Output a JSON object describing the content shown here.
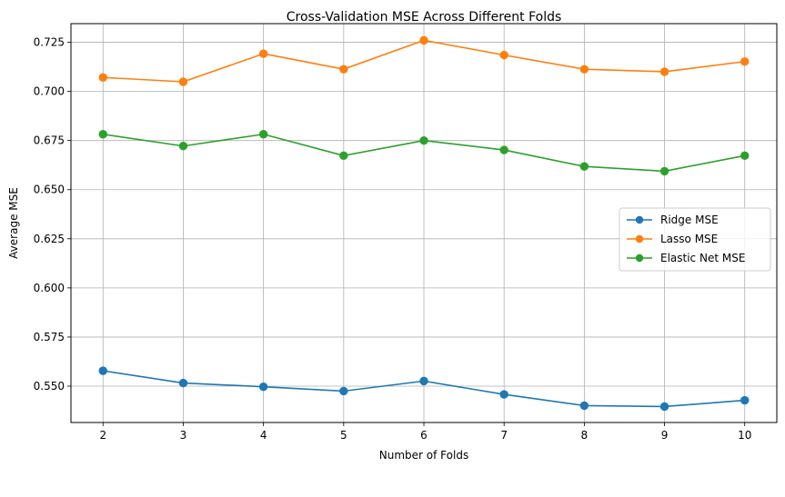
{
  "chart_data": {
    "type": "line",
    "title": "Cross-Validation MSE Across Different Folds",
    "xlabel": "Number of Folds",
    "ylabel": "Average MSE",
    "x": [
      2,
      3,
      4,
      5,
      6,
      7,
      8,
      9,
      10
    ],
    "xlim": [
      1.6,
      10.4
    ],
    "ylim": [
      0.5315,
      0.7345
    ],
    "xticks": [
      "2",
      "3",
      "4",
      "5",
      "6",
      "7",
      "8",
      "9",
      "10"
    ],
    "yticks": [
      "0.550",
      "0.575",
      "0.600",
      "0.625",
      "0.650",
      "0.675",
      "0.700",
      "0.725"
    ],
    "grid": true,
    "legend_position": "center-right",
    "series": [
      {
        "name": "Ridge MSE",
        "color": "#1f77b4",
        "marker": "circle",
        "values": [
          0.5578,
          0.5516,
          0.5497,
          0.5475,
          0.5526,
          0.5458,
          0.5401,
          0.5396,
          0.5428
        ]
      },
      {
        "name": "Lasso MSE",
        "color": "#ff7f0e",
        "marker": "circle",
        "values": [
          0.7071,
          0.7049,
          0.7192,
          0.7113,
          0.726,
          0.7185,
          0.7113,
          0.71,
          0.7152
        ]
      },
      {
        "name": "Elastic Net MSE",
        "color": "#2ca02c",
        "marker": "circle",
        "values": [
          0.6782,
          0.6722,
          0.6782,
          0.6673,
          0.675,
          0.6702,
          0.6618,
          0.6594,
          0.6673
        ]
      }
    ]
  }
}
